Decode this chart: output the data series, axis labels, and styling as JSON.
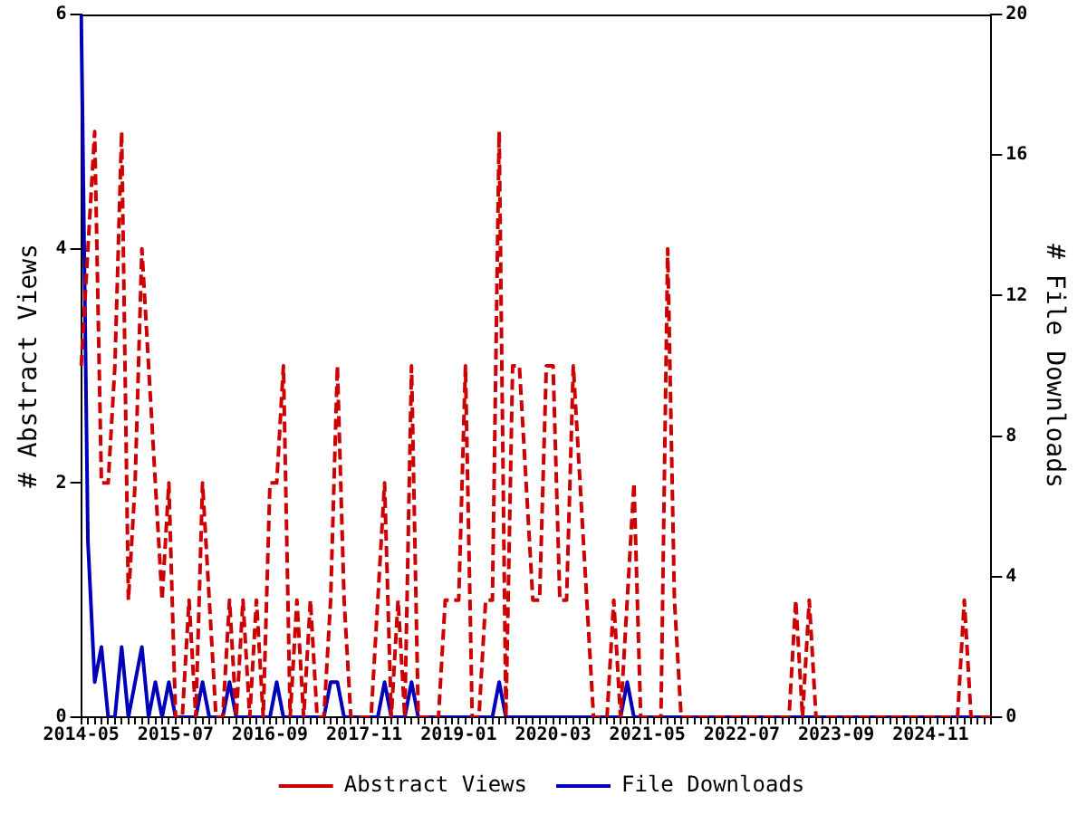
{
  "chart_data": {
    "type": "line",
    "ylabel": "# Abstract Views",
    "y2label": "# File Downloads",
    "categories": [
      "2014-05",
      null,
      null,
      null,
      null,
      null,
      null,
      null,
      null,
      null,
      null,
      null,
      null,
      null,
      "2015-07",
      null,
      null,
      null,
      null,
      null,
      null,
      null,
      null,
      null,
      null,
      null,
      null,
      null,
      "2016-09",
      null,
      null,
      null,
      null,
      null,
      null,
      null,
      null,
      null,
      null,
      null,
      null,
      null,
      "2017-11",
      null,
      null,
      null,
      null,
      null,
      null,
      null,
      null,
      null,
      null,
      null,
      null,
      null,
      "2019-01",
      null,
      null,
      null,
      null,
      null,
      null,
      null,
      null,
      null,
      null,
      null,
      null,
      null,
      "2020-03",
      null,
      null,
      null,
      null,
      null,
      null,
      null,
      null,
      null,
      null,
      null,
      null,
      null,
      "2021-05",
      null,
      null,
      null,
      null,
      null,
      null,
      null,
      null,
      null,
      null,
      null,
      null,
      null,
      "2022-07",
      null,
      null,
      null,
      null,
      null,
      null,
      null,
      null,
      null,
      null,
      null,
      null,
      null,
      "2023-09",
      null,
      null,
      null,
      null,
      null,
      null,
      null,
      null,
      null,
      null,
      null,
      null,
      null,
      "2024-11",
      null,
      null,
      null,
      null,
      null,
      null,
      null,
      null,
      null
    ],
    "series": [
      {
        "name": "Abstract Views",
        "color": "#cc0000",
        "line_style": "dashed",
        "values": [
          3,
          4,
          5,
          2,
          2,
          3,
          5,
          1,
          2,
          4,
          3,
          2,
          1,
          2,
          0,
          0,
          1,
          0,
          2,
          1,
          0,
          0,
          1,
          0,
          1,
          0,
          1,
          0,
          2,
          2,
          3,
          0,
          1,
          0,
          1,
          0,
          0,
          1,
          3,
          1,
          0,
          0,
          0,
          0,
          1,
          2,
          0,
          1,
          0,
          3,
          0,
          0,
          0,
          0,
          1,
          1,
          1,
          3,
          0,
          0,
          1,
          1,
          5,
          0,
          3,
          3,
          2,
          1,
          1,
          3,
          3,
          1,
          1,
          3,
          2,
          1,
          0,
          0,
          0,
          1,
          0,
          1,
          2,
          0,
          0,
          0,
          0,
          4,
          1,
          0,
          0,
          0,
          0,
          0,
          0,
          0,
          0,
          0,
          0,
          0,
          0,
          0,
          0,
          0,
          0,
          0,
          1,
          0,
          1,
          0,
          0,
          0,
          0,
          0,
          0,
          0,
          0,
          0,
          0,
          0,
          0,
          0,
          0,
          0,
          0,
          0,
          0,
          0,
          0,
          0,
          0,
          1,
          0,
          0,
          0,
          0
        ]
      },
      {
        "name": "File Downloads",
        "color": "#0000bb",
        "line_style": "solid",
        "axis": "y2",
        "values": [
          20,
          5,
          1,
          2,
          0,
          0,
          2,
          0,
          1,
          2,
          0,
          1,
          0,
          1,
          0,
          0,
          0,
          0,
          1,
          0,
          0,
          0,
          1,
          0,
          0,
          0,
          0,
          0,
          0,
          1,
          0,
          0,
          0,
          0,
          0,
          0,
          0,
          1,
          1,
          0,
          0,
          0,
          0,
          0,
          0,
          1,
          0,
          0,
          0,
          1,
          0,
          0,
          0,
          0,
          0,
          0,
          0,
          0,
          0,
          0,
          0,
          0,
          1,
          0,
          0,
          0,
          0,
          0,
          0,
          0,
          0,
          0,
          0,
          0,
          0,
          0,
          0,
          0,
          0,
          0,
          0,
          1,
          0,
          0,
          0,
          0,
          0,
          0,
          0,
          0,
          0,
          0,
          0,
          0,
          0,
          0,
          0,
          0,
          0,
          0,
          0,
          0,
          0,
          0,
          0,
          0,
          0,
          0,
          0,
          0,
          0,
          0,
          0,
          0,
          0,
          0,
          0,
          0,
          0,
          0,
          0,
          0,
          0,
          0,
          0,
          0,
          0,
          0,
          0,
          0,
          0,
          0,
          0,
          0,
          0,
          0
        ]
      }
    ],
    "ylim": [
      0,
      6
    ],
    "yticks": [
      0,
      2,
      4,
      6
    ],
    "y2lim": [
      0,
      20
    ],
    "y2ticks": [
      0,
      4,
      8,
      12,
      16,
      20
    ],
    "grid": false,
    "legend": "bottom",
    "marker": "none"
  }
}
